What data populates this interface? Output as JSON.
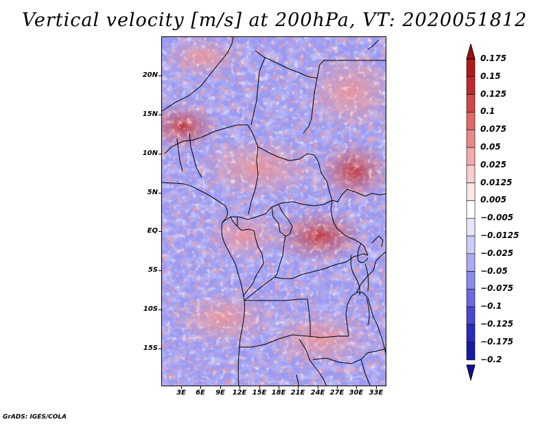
{
  "title": "Vertical velocity [m/s] at 200hPa, VT: 2020051812",
  "credit": "GrADS: IGES/COLA",
  "map": {
    "variable": "Vertical velocity",
    "units": "m/s",
    "level": "200hPa",
    "valid_time": "2020051812",
    "lat_labels": [
      "20N",
      "15N",
      "10N",
      "5N",
      "EQ",
      "5S",
      "10S",
      "15S"
    ],
    "lon_labels": [
      "3E",
      "6E",
      "9E",
      "12E",
      "15E",
      "18E",
      "21E",
      "24E",
      "27E",
      "30E",
      "33E"
    ],
    "lat_values": [
      20,
      15,
      10,
      5,
      0,
      -5,
      -10,
      -15
    ],
    "lon_values": [
      3,
      6,
      9,
      12,
      15,
      18,
      21,
      24,
      27,
      30,
      33
    ],
    "lat_range": [
      -20,
      24.5
    ],
    "lon_range": [
      0.5,
      35
    ]
  },
  "colorbar": {
    "levels": [
      "0.175",
      "0.15",
      "0.125",
      "0.1",
      "0.075",
      "0.05",
      "0.025",
      "0.0125",
      "0.005",
      "−0.005",
      "−0.0125",
      "−0.025",
      "−0.05",
      "−0.075",
      "−0.1",
      "−0.125",
      "−0.175",
      "−0.2"
    ],
    "colors": [
      "#a01010",
      "#b01a1a",
      "#c02a2a",
      "#d04848",
      "#e06a6a",
      "#e88a8a",
      "#f2aaaa",
      "#f8cccc",
      "#fce6e6",
      "#ffffff",
      "#e6e6fc",
      "#ccccf8",
      "#aaaaf2",
      "#8a8aea",
      "#6a6ae0",
      "#4848d0",
      "#2a2ac0",
      "#1a1aa8",
      "#101090"
    ]
  }
}
